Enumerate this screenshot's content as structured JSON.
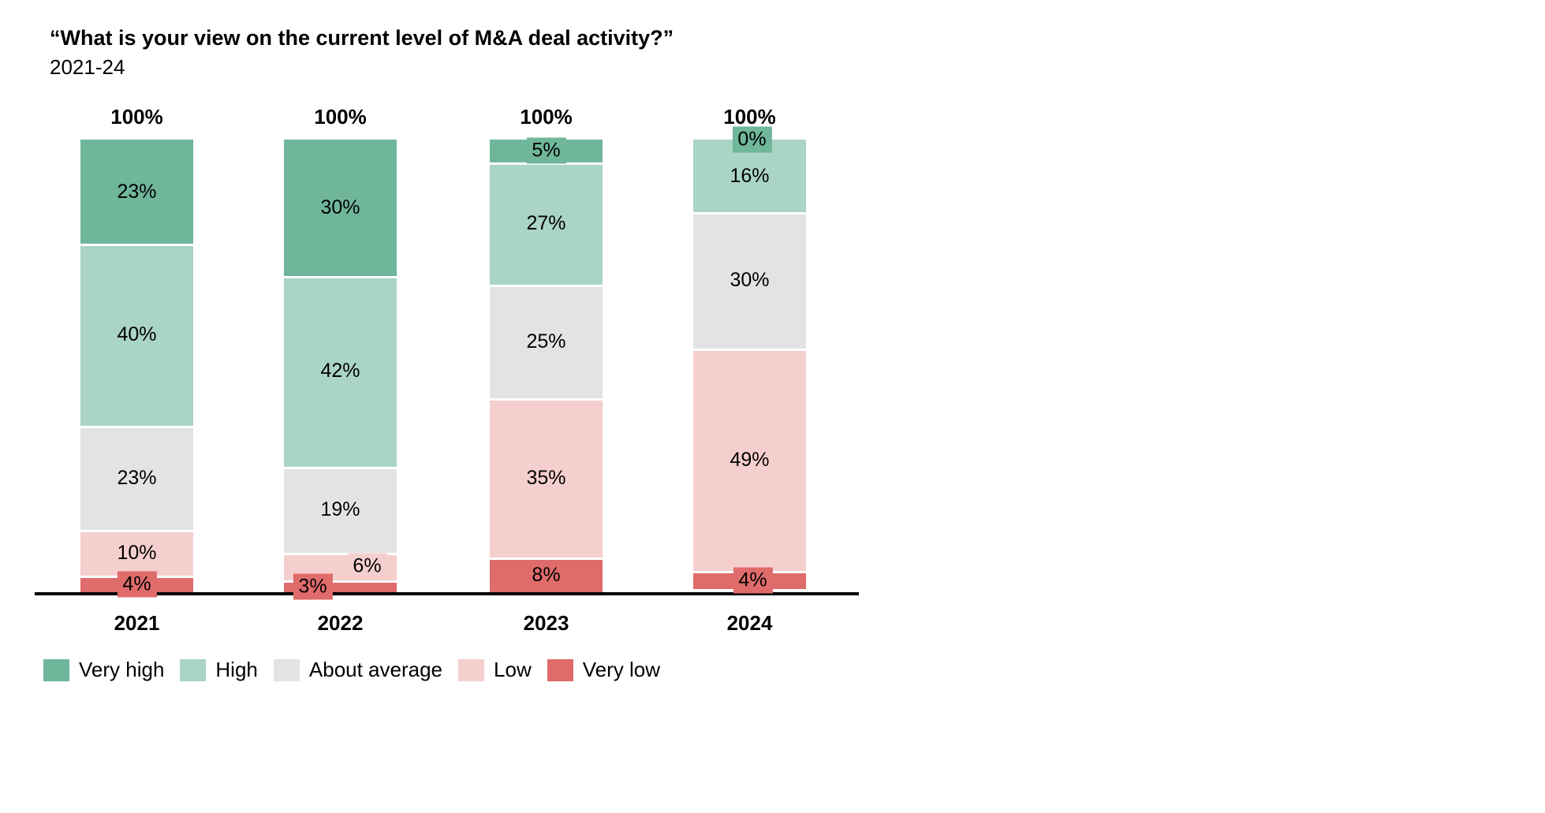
{
  "header": {
    "title": "“What is your view on the current level of M&A deal activity?”",
    "subtitle": "2021-24"
  },
  "chart_data": {
    "type": "bar",
    "stacked": true,
    "orientation": "vertical",
    "unit": "%",
    "title": "“What is your view on the current level of M&A deal activity?”",
    "subtitle": "2021-24",
    "categories": [
      "2021",
      "2022",
      "2023",
      "2024"
    ],
    "series": [
      {
        "name": "Very high",
        "color": "#6fb69b",
        "values": [
          23,
          30,
          5,
          0
        ]
      },
      {
        "name": "High",
        "color": "#aad4c4",
        "values": [
          40,
          42,
          27,
          16
        ]
      },
      {
        "name": "About average",
        "color": "#e2e3e5",
        "values": [
          23,
          19,
          25,
          30
        ]
      },
      {
        "name": "Low",
        "color": "#f5cfce",
        "values": [
          10,
          6,
          35,
          49
        ]
      },
      {
        "name": "Very low",
        "color": "#df6b6b",
        "values": [
          4,
          3,
          8,
          4
        ]
      }
    ],
    "bar_total_label": "100%",
    "value_suffix": "%",
    "ylim": [
      0,
      100
    ],
    "grid": false,
    "legend_position": "bottom",
    "label_dx_hints": {
      "2022": {
        "Low": 34,
        "Very low": -35
      },
      "2024": {
        "Very high": 3,
        "Very low": 4
      }
    }
  }
}
